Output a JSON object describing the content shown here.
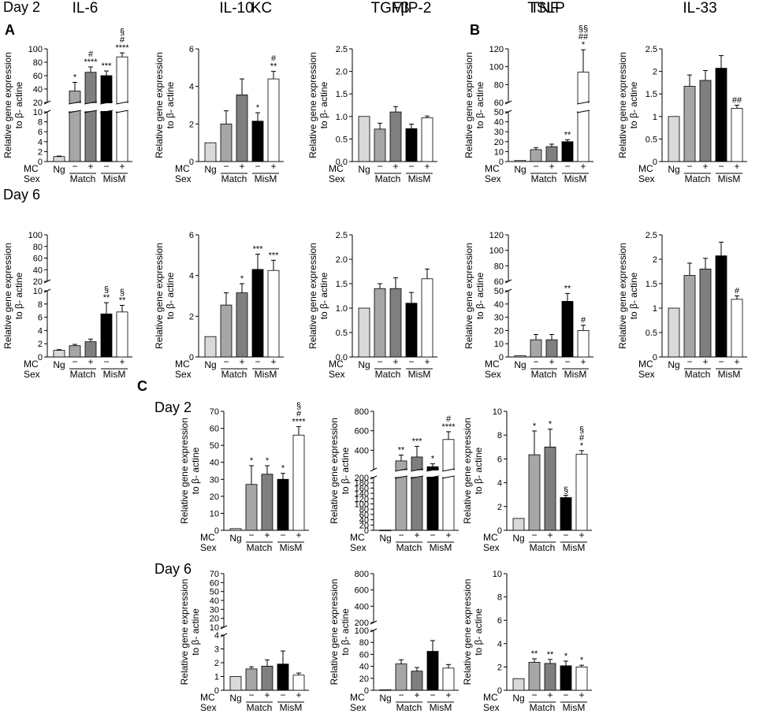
{
  "colors": {
    "Ng": "#d9d9d9",
    "MatchMinus": "#a6a6a6",
    "MatchPlus": "#7f7f7f",
    "MisMMinus": "#000000",
    "MisMPlus": "#ffffff"
  },
  "day_labels": {
    "day2": "Day 2",
    "day6": "Day 6"
  },
  "panel_labels": {
    "A": "A",
    "B": "B",
    "C": "C"
  },
  "axis_text": {
    "ylabel1": "Relative gene expression",
    "ylabel2": "to β- actine",
    "row_mc": "MC",
    "row_sex": "Sex",
    "ng": "Ng",
    "minus": "−",
    "plus": "+",
    "match": "Match",
    "mism": "MisM"
  },
  "chart_data": [
    {
      "id": "il6_d2",
      "type": "bar",
      "title": "IL-6",
      "day": "Day 2",
      "categories": [
        "Ng",
        "Match −",
        "Match +",
        "MisM −",
        "MisM +"
      ],
      "values": [
        1,
        37,
        65,
        60,
        88
      ],
      "errors": [
        0.1,
        13,
        8,
        7,
        6
      ],
      "broken_axis": true,
      "lower": {
        "range": [
          0,
          10
        ],
        "ticks": [
          0,
          2,
          4,
          6,
          8,
          10
        ]
      },
      "upper": {
        "range": [
          20,
          100
        ],
        "ticks": [
          20,
          40,
          60,
          80,
          100
        ]
      },
      "signif": [
        "",
        "*",
        "#\n****",
        "***",
        "§\n#\n****"
      ]
    },
    {
      "id": "il10_d2",
      "type": "bar",
      "title": "IL-10",
      "day": "Day 2",
      "categories": [
        "Ng",
        "Match −",
        "Match +",
        "MisM −",
        "MisM +"
      ],
      "values": [
        1,
        2,
        3.55,
        2.15,
        4.4
      ],
      "errors": [
        0,
        0.7,
        0.85,
        0.45,
        0.4
      ],
      "ylim": [
        0,
        6
      ],
      "ticks": [
        0,
        2,
        4,
        6
      ],
      "signif": [
        "",
        "",
        "",
        "*",
        "#\n**"
      ]
    },
    {
      "id": "tgfb_d2",
      "type": "bar",
      "title": "TGFβ",
      "day": "Day 2",
      "categories": [
        "Ng",
        "Match −",
        "Match +",
        "MisM −",
        "MisM +"
      ],
      "values": [
        1,
        0.72,
        1.1,
        0.73,
        0.97
      ],
      "errors": [
        0,
        0.13,
        0.12,
        0.1,
        0.04
      ],
      "ylim": [
        0,
        2.5
      ],
      "ticks": [
        0.0,
        0.5,
        1.0,
        1.5,
        2.0,
        2.5
      ],
      "tick_decimals": 1,
      "signif": [
        "",
        "",
        "",
        "",
        ""
      ]
    },
    {
      "id": "tslp_d2",
      "type": "bar",
      "title": "TSLP",
      "day": "Day 2",
      "categories": [
        "Ng",
        "Match −",
        "Match +",
        "MisM −",
        "MisM +"
      ],
      "values": [
        1,
        12,
        15,
        20,
        94
      ],
      "errors": [
        0,
        2,
        2.5,
        2,
        25
      ],
      "broken_axis": true,
      "lower": {
        "range": [
          0,
          50
        ],
        "ticks": [
          0,
          10,
          20,
          30,
          40,
          50
        ]
      },
      "upper": {
        "range": [
          60,
          120
        ],
        "ticks": [
          60,
          80,
          100,
          120
        ]
      },
      "signif": [
        "",
        "",
        "",
        "**",
        "§§\n##\n*"
      ]
    },
    {
      "id": "il33_d2",
      "type": "bar",
      "title": "IL-33",
      "day": "Day 2",
      "categories": [
        "Ng",
        "Match −",
        "Match +",
        "MisM −",
        "MisM +"
      ],
      "values": [
        1,
        1.67,
        1.8,
        2.07,
        1.18
      ],
      "errors": [
        0,
        0.25,
        0.22,
        0.28,
        0.07
      ],
      "ylim": [
        0,
        2.5
      ],
      "ticks": [
        0,
        0.5,
        1,
        1.5,
        2,
        2.5
      ],
      "signif": [
        "",
        "",
        "",
        "",
        "##"
      ]
    },
    {
      "id": "il6_d6",
      "type": "bar",
      "title": "",
      "day": "Day 6",
      "categories": [
        "Ng",
        "Match −",
        "Match +",
        "MisM −",
        "MisM +"
      ],
      "values": [
        1,
        1.7,
        2.3,
        6.5,
        6.8
      ],
      "errors": [
        0.1,
        0.2,
        0.4,
        1.7,
        1
      ],
      "broken_axis": true,
      "lower": {
        "range": [
          0,
          10
        ],
        "ticks": [
          0,
          2,
          4,
          6,
          8,
          10
        ]
      },
      "upper": {
        "range": [
          20,
          100
        ],
        "ticks": [
          20,
          40,
          60,
          80,
          100
        ]
      },
      "signif": [
        "",
        "",
        "",
        "§\n**",
        "§\n**"
      ]
    },
    {
      "id": "il10_d6",
      "type": "bar",
      "title": "",
      "day": "Day 6",
      "categories": [
        "Ng",
        "Match −",
        "Match +",
        "MisM −",
        "MisM +"
      ],
      "values": [
        1,
        2.55,
        3.15,
        4.3,
        4.25
      ],
      "errors": [
        0,
        0.6,
        0.45,
        0.75,
        0.5
      ],
      "ylim": [
        0,
        6
      ],
      "ticks": [
        0,
        2,
        4,
        6
      ],
      "signif": [
        "",
        "",
        "*",
        "***",
        "***"
      ]
    },
    {
      "id": "tgfb_d6",
      "type": "bar",
      "title": "",
      "day": "Day 6",
      "categories": [
        "Ng",
        "Match −",
        "Match +",
        "MisM −",
        "MisM +"
      ],
      "values": [
        1,
        1.4,
        1.4,
        1.1,
        1.6
      ],
      "errors": [
        0,
        0.1,
        0.22,
        0.22,
        0.2
      ],
      "ylim": [
        0,
        2.5
      ],
      "ticks": [
        0.0,
        0.5,
        1.0,
        1.5,
        2.0,
        2.5
      ],
      "tick_decimals": 1,
      "signif": [
        "",
        "",
        "",
        "",
        ""
      ]
    },
    {
      "id": "tslp_d6",
      "type": "bar",
      "title": "",
      "day": "Day 6",
      "categories": [
        "Ng",
        "Match −",
        "Match +",
        "MisM −",
        "MisM +"
      ],
      "values": [
        1,
        13,
        13,
        42,
        20
      ],
      "errors": [
        0,
        4,
        4,
        6,
        4
      ],
      "broken_axis": true,
      "lower": {
        "range": [
          0,
          50
        ],
        "ticks": [
          0,
          10,
          20,
          30,
          40,
          50
        ]
      },
      "upper": {
        "range": [
          60,
          120
        ],
        "ticks": [
          60,
          80,
          100,
          120
        ]
      },
      "signif": [
        "",
        "",
        "",
        "**",
        "#"
      ]
    },
    {
      "id": "il33_d6",
      "type": "bar",
      "title": "",
      "day": "Day 6",
      "categories": [
        "Ng",
        "Match −",
        "Match +",
        "MisM −",
        "MisM +"
      ],
      "values": [
        1,
        1.67,
        1.8,
        2.07,
        1.18
      ],
      "errors": [
        0,
        0.25,
        0.22,
        0.28,
        0.07
      ],
      "ylim": [
        0,
        2.5
      ],
      "ticks": [
        0,
        0.5,
        1,
        1.5,
        2,
        2.5
      ],
      "signif": [
        "",
        "",
        "",
        "",
        "#"
      ]
    },
    {
      "id": "kc_d2",
      "type": "bar",
      "title": "KC",
      "day": "Day 2",
      "categories": [
        "Ng",
        "Match −",
        "Match +",
        "MisM −",
        "MisM +"
      ],
      "values": [
        1,
        27,
        33,
        30,
        56
      ],
      "errors": [
        0,
        11,
        5,
        3.5,
        5
      ],
      "ylim": [
        0,
        70
      ],
      "ticks": [
        0,
        10,
        20,
        30,
        40,
        50,
        60,
        70
      ],
      "signif": [
        "",
        "*",
        "*",
        "*",
        "§\n#\n****"
      ]
    },
    {
      "id": "mip2_d2",
      "type": "bar",
      "title": "MIP-2",
      "day": "Day 2",
      "categories": [
        "Ng",
        "Match −",
        "Match +",
        "MisM −",
        "MisM +"
      ],
      "values": [
        1,
        290,
        330,
        230,
        510
      ],
      "errors": [
        0,
        60,
        110,
        30,
        80
      ],
      "broken_axis": true,
      "lower": {
        "range": [
          0,
          200
        ],
        "ticks": [
          0,
          20,
          40,
          60,
          80,
          100,
          120,
          140,
          160,
          180,
          200
        ]
      },
      "upper": {
        "range": [
          200,
          800
        ],
        "ticks": [
          200,
          400,
          600,
          800
        ]
      },
      "signif": [
        "",
        "**",
        "***",
        "*",
        "#\n****"
      ]
    },
    {
      "id": "tnf_d2",
      "type": "bar",
      "title": "TNF",
      "day": "Day 2",
      "categories": [
        "Ng",
        "Match −",
        "Match +",
        "MisM −",
        "MisM +"
      ],
      "values": [
        1,
        6.35,
        7,
        2.75,
        6.4
      ],
      "errors": [
        0,
        2,
        1.5,
        0.2,
        0.3
      ],
      "ylim": [
        0,
        10
      ],
      "ticks": [
        0,
        2,
        4,
        6,
        8,
        10
      ],
      "signif": [
        "",
        "*",
        "*",
        "§",
        "§\n#\n*"
      ]
    },
    {
      "id": "kc_d6",
      "type": "bar",
      "title": "",
      "day": "Day 6",
      "categories": [
        "Ng",
        "Match −",
        "Match +",
        "MisM −",
        "MisM +"
      ],
      "values": [
        1,
        1.55,
        1.75,
        1.9,
        1.1
      ],
      "errors": [
        0,
        0.15,
        0.45,
        0.95,
        0.15
      ],
      "broken_axis": true,
      "lower": {
        "range": [
          0,
          4
        ],
        "ticks": [
          0,
          1,
          2,
          3,
          4
        ]
      },
      "upper": {
        "range": [
          10,
          70
        ],
        "ticks": [
          10,
          20,
          30,
          40,
          50,
          60,
          70
        ]
      },
      "signif": [
        "",
        "",
        "",
        "",
        ""
      ]
    },
    {
      "id": "mip2_d6",
      "type": "bar",
      "title": "",
      "day": "Day 6",
      "categories": [
        "Ng",
        "Match −",
        "Match +",
        "MisM −",
        "MisM +"
      ],
      "values": [
        1,
        44,
        32,
        65,
        37
      ],
      "errors": [
        0,
        7,
        6,
        18,
        6
      ],
      "broken_axis": true,
      "lower": {
        "range": [
          0,
          100
        ],
        "ticks": [
          0,
          20,
          40,
          60,
          80,
          100
        ]
      },
      "upper": {
        "range": [
          200,
          800
        ],
        "ticks": [
          200,
          400,
          600,
          800
        ]
      },
      "signif": [
        "",
        "",
        "",
        "",
        ""
      ]
    },
    {
      "id": "tnf_d6",
      "type": "bar",
      "title": "",
      "day": "Day 6",
      "categories": [
        "Ng",
        "Match −",
        "Match +",
        "MisM −",
        "MisM +"
      ],
      "values": [
        1,
        2.4,
        2.3,
        2.1,
        2.0
      ],
      "errors": [
        0,
        0.3,
        0.35,
        0.4,
        0.15
      ],
      "ylim": [
        0,
        10
      ],
      "ticks": [
        0,
        2,
        4,
        6,
        8,
        10
      ],
      "signif": [
        "",
        "**",
        "**",
        "*",
        "*"
      ]
    }
  ]
}
